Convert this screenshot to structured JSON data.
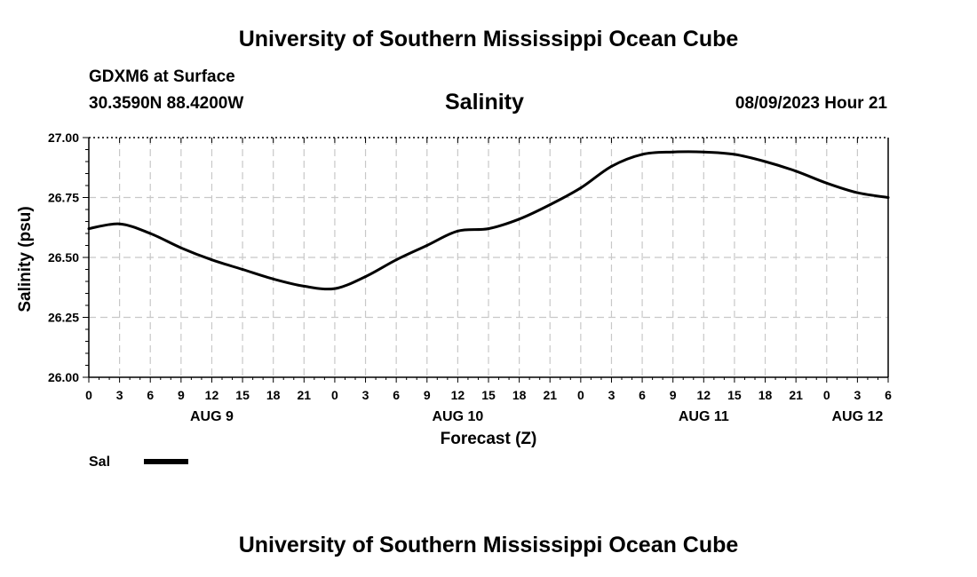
{
  "header": {
    "title": "University of Southern Mississippi Ocean Cube",
    "station": "GDXM6 at Surface",
    "coords": "30.3590N  88.4200W",
    "chart_title": "Salinity",
    "datetime": "08/09/2023 Hour 21"
  },
  "footer": {
    "title": "University of Southern Mississippi Ocean Cube"
  },
  "legend": {
    "label": "Sal"
  },
  "colors": {
    "line": "#000000",
    "grid": "#c8c8c8"
  },
  "chart_data": {
    "type": "line",
    "title": "Salinity",
    "xlabel": "Forecast (Z)",
    "ylabel": "Salinity (psu)",
    "xlim": [
      0,
      78
    ],
    "ylim": [
      26.0,
      27.0
    ],
    "yticks": [
      26.0,
      26.25,
      26.5,
      26.75,
      27.0
    ],
    "ytick_labels": [
      "26.00",
      "26.25",
      "26.50",
      "26.75",
      "27.00"
    ],
    "xtick_labels": [
      "0",
      "3",
      "6",
      "9",
      "12",
      "15",
      "18",
      "21",
      "0",
      "3",
      "6",
      "9",
      "12",
      "15",
      "18",
      "21",
      "0",
      "3",
      "6",
      "9",
      "12",
      "15",
      "18",
      "21",
      "0",
      "3",
      "6"
    ],
    "date_labels": [
      {
        "x": 12,
        "label": "AUG 9"
      },
      {
        "x": 36,
        "label": "AUG 10"
      },
      {
        "x": 60,
        "label": "AUG 11"
      },
      {
        "x": 75,
        "label": "AUG 12"
      }
    ],
    "series": [
      {
        "name": "Sal",
        "x": [
          0,
          3,
          6,
          9,
          12,
          15,
          18,
          21,
          24,
          27,
          30,
          33,
          36,
          39,
          42,
          45,
          48,
          51,
          54,
          57,
          60,
          63,
          66,
          69,
          72,
          75,
          78
        ],
        "y": [
          26.62,
          26.64,
          26.6,
          26.54,
          26.49,
          26.45,
          26.41,
          26.38,
          26.37,
          26.42,
          26.49,
          26.55,
          26.61,
          26.62,
          26.66,
          26.72,
          26.79,
          26.88,
          26.93,
          26.94,
          26.94,
          26.93,
          26.9,
          26.86,
          26.81,
          26.77,
          26.75
        ]
      }
    ]
  }
}
